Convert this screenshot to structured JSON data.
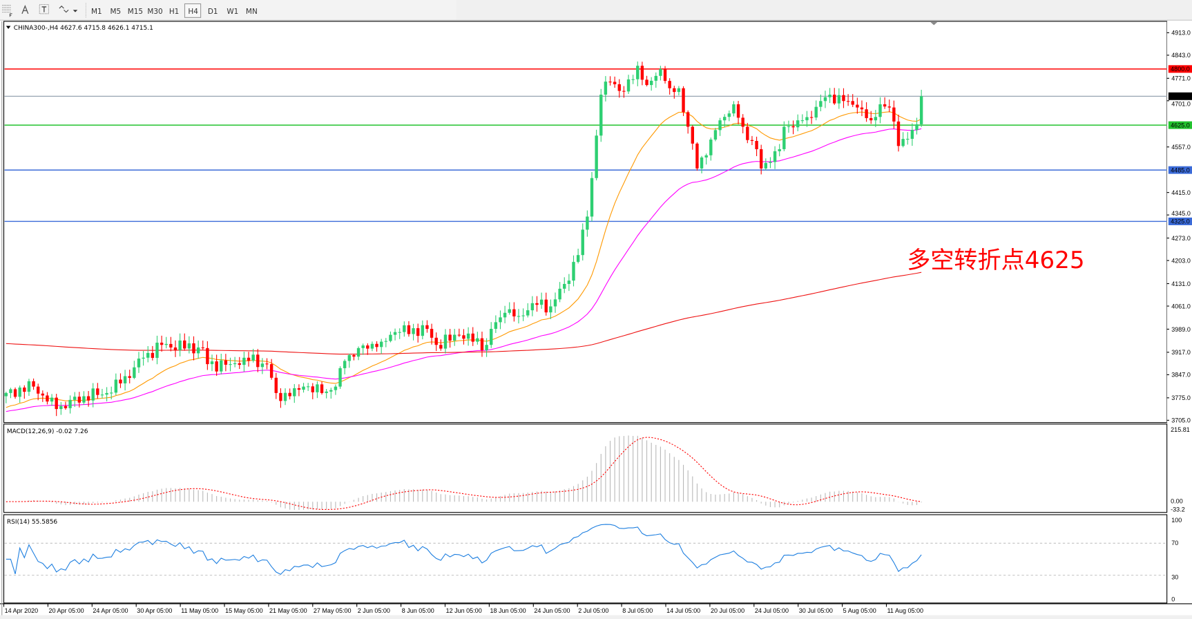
{
  "toolbar": {
    "icons": [
      "grid-icon",
      "text-a-icon",
      "text-label-icon",
      "arrows-icon"
    ],
    "timeframes": [
      "M1",
      "M5",
      "M15",
      "M30",
      "H1",
      "H4",
      "D1",
      "W1",
      "MN"
    ],
    "active_timeframe": "H4"
  },
  "chart": {
    "header": "CHINA300-,H4  4627.6 4715.8 4626.1 4715.1",
    "symbol": "CHINA300-",
    "timeframe": "H4",
    "ohlc": {
      "open": 4627.6,
      "high": 4715.8,
      "low": 4626.1,
      "close": 4715.1
    },
    "annotation": "多空转折点4625",
    "colors": {
      "bull": "#2ecf72",
      "bear": "#ff0000",
      "ma_fast": "#ff9900",
      "ma_mid": "#ff00ff",
      "ma_slow": "#ee1111",
      "annotation": "#ff0000"
    }
  },
  "price_axis": {
    "ticks": [
      "4913.0",
      "4843.0",
      "4771.0",
      "4701.0",
      "4557.0",
      "4415.0",
      "4345.0",
      "4273.0",
      "4203.0",
      "4131.0",
      "4061.0",
      "3989.0",
      "3917.0",
      "3847.0",
      "3775.0",
      "3705.0"
    ],
    "range": [
      3705,
      4913
    ]
  },
  "levels": [
    {
      "value": 4800.0,
      "label": "4800.0",
      "color": "#ff0000"
    },
    {
      "value": 4715.1,
      "label": "4715.1",
      "color": "#000000",
      "line": "#8a98a8"
    },
    {
      "value": 4625.0,
      "label": "4625.0",
      "color": "#22c22e"
    },
    {
      "value": 4485.0,
      "label": "4485.0",
      "color": "#3a6ad8"
    },
    {
      "value": 4325.0,
      "label": "4325.0",
      "color": "#3a6ad8"
    }
  ],
  "chart_data": {
    "type": "candlestick",
    "close_path": [
      [
        0,
        3790
      ],
      [
        6,
        3810
      ],
      [
        11,
        3740
      ],
      [
        17,
        3780
      ],
      [
        22,
        3790
      ],
      [
        25,
        3820
      ],
      [
        28,
        3870
      ],
      [
        30,
        3900
      ],
      [
        34,
        3940
      ],
      [
        43,
        3930
      ],
      [
        44,
        3880
      ],
      [
        49,
        3880
      ],
      [
        52,
        3900
      ],
      [
        57,
        3880
      ],
      [
        59,
        3790
      ],
      [
        62,
        3780
      ],
      [
        65,
        3810
      ],
      [
        69,
        3790
      ],
      [
        72,
        3810
      ],
      [
        74,
        3890
      ],
      [
        77,
        3930
      ],
      [
        82,
        3950
      ],
      [
        85,
        3980
      ],
      [
        92,
        3990
      ],
      [
        94,
        3940
      ],
      [
        99,
        3970
      ],
      [
        105,
        3940
      ],
      [
        106,
        3990
      ],
      [
        109,
        4040
      ],
      [
        112,
        4030
      ],
      [
        115,
        4070
      ],
      [
        119,
        4060
      ],
      [
        122,
        4130
      ],
      [
        125,
        4220
      ],
      [
        127,
        4340
      ],
      [
        128,
        4460
      ],
      [
        130,
        4720
      ],
      [
        132,
        4760
      ],
      [
        135,
        4730
      ],
      [
        138,
        4810
      ],
      [
        140,
        4750
      ],
      [
        143,
        4800
      ],
      [
        145,
        4740
      ],
      [
        147,
        4740
      ],
      [
        149,
        4620
      ],
      [
        151,
        4490
      ],
      [
        154,
        4580
      ],
      [
        156,
        4640
      ],
      [
        159,
        4690
      ],
      [
        161,
        4620
      ],
      [
        164,
        4550
      ],
      [
        165,
        4490
      ],
      [
        167,
        4510
      ],
      [
        169,
        4550
      ],
      [
        170,
        4620
      ],
      [
        173,
        4640
      ],
      [
        175,
        4650
      ],
      [
        178,
        4700
      ],
      [
        180,
        4720
      ],
      [
        184,
        4700
      ],
      [
        186,
        4680
      ],
      [
        189,
        4640
      ],
      [
        191,
        4690
      ],
      [
        193,
        4680
      ],
      [
        195,
        4560
      ],
      [
        198,
        4610
      ],
      [
        199,
        4627.6
      ],
      [
        200,
        4715.1
      ]
    ]
  },
  "macd": {
    "label": "MACD(12,26,9) -0.02 7.26",
    "axis": {
      "max": "215.81",
      "zero": "0.00",
      "min": "-33.2"
    }
  },
  "rsi": {
    "label": "RSI(14) 55.5856",
    "axis": {
      "top": "100",
      "upper": "70",
      "lower": "30",
      "bottom": "0"
    }
  },
  "time_axis": {
    "labels": [
      "14 Apr 2020",
      "20 Apr 05:00",
      "24 Apr 05:00",
      "30 Apr 05:00",
      "11 May 05:00",
      "15 May 05:00",
      "21 May 05:00",
      "27 May 05:00",
      "2 Jun 05:00",
      "8 Jun 05:00",
      "12 Jun 05:00",
      "18 Jun 05:00",
      "24 Jun 05:00",
      "2 Jul 05:00",
      "8 Jul 05:00",
      "14 Jul 05:00",
      "20 Jul 05:00",
      "24 Jul 05:00",
      "30 Jul 05:00",
      "5 Aug 05:00",
      "11 Aug 05:00"
    ]
  }
}
